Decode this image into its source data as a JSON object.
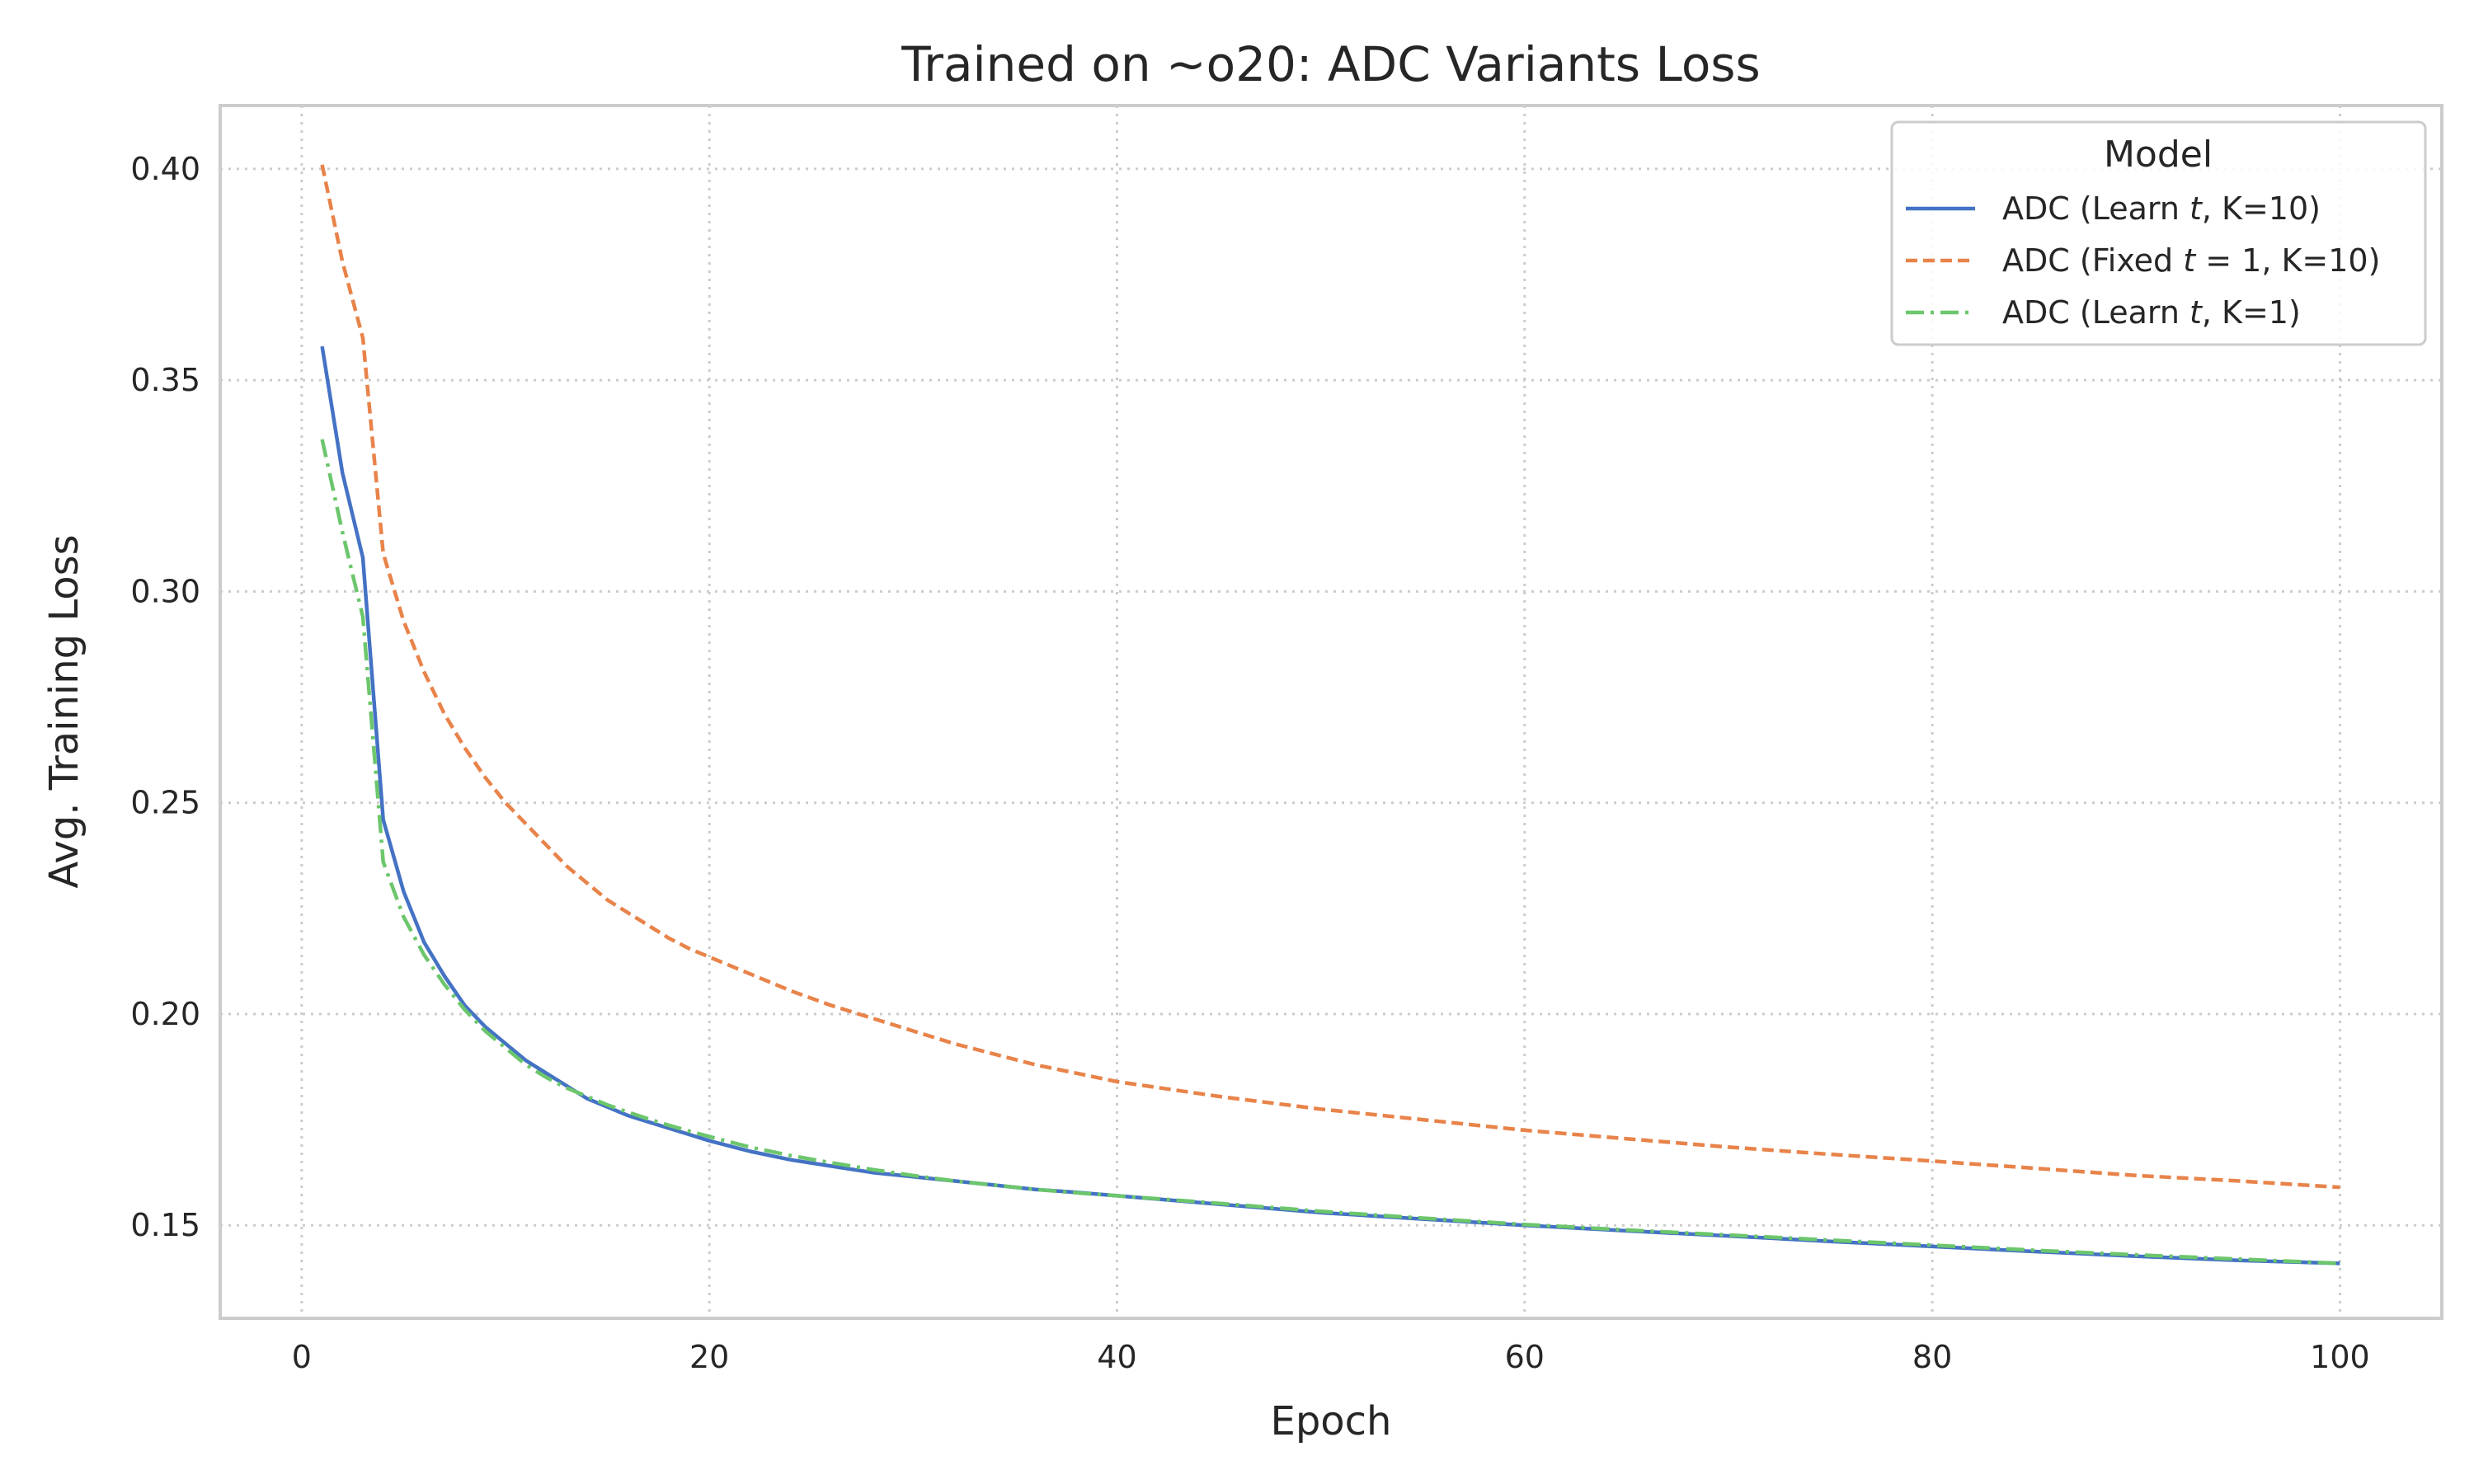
{
  "chart_data": {
    "type": "line",
    "title": "Trained on ~o20: ADC Variants Loss",
    "xlabel": "Epoch",
    "ylabel": "Avg. Training Loss",
    "xlim": [
      -4,
      105
    ],
    "ylim": [
      0.128,
      0.415
    ],
    "xticks": [
      0,
      20,
      40,
      60,
      80,
      100
    ],
    "xtick_labels": [
      "0",
      "20",
      "40",
      "60",
      "80",
      "100"
    ],
    "yticks": [
      0.15,
      0.2,
      0.25,
      0.3,
      0.35,
      0.4
    ],
    "ytick_labels": [
      "0.15",
      "0.20",
      "0.25",
      "0.30",
      "0.35",
      "0.40"
    ],
    "grid": true,
    "legend": {
      "title": "Model",
      "position": "top-right"
    },
    "series": [
      {
        "name": "ADC (Learn t, K=10)",
        "legend_parts": [
          "ADC (Learn ",
          "t",
          ", K=10)"
        ],
        "color": "#4472c4",
        "style": "solid",
        "x": [
          1,
          2,
          3,
          4,
          5,
          6,
          7,
          8,
          9,
          10,
          11,
          12,
          13,
          14,
          15,
          16,
          17,
          18,
          19,
          20,
          22,
          24,
          26,
          28,
          30,
          32,
          34,
          36,
          38,
          40,
          45,
          50,
          55,
          60,
          65,
          70,
          75,
          80,
          85,
          90,
          95,
          100
        ],
        "y": [
          0.358,
          0.328,
          0.308,
          0.246,
          0.229,
          0.217,
          0.209,
          0.202,
          0.197,
          0.193,
          0.189,
          0.186,
          0.183,
          0.18,
          0.178,
          0.176,
          0.1745,
          0.173,
          0.1715,
          0.17,
          0.1675,
          0.1655,
          0.164,
          0.1625,
          0.1615,
          0.1605,
          0.1595,
          0.1585,
          0.1578,
          0.157,
          0.155,
          0.153,
          0.1515,
          0.15,
          0.1487,
          0.1475,
          0.1462,
          0.145,
          0.1438,
          0.1427,
          0.1417,
          0.141
        ]
      },
      {
        "name": "ADC (Fixed t = 1, K=10)",
        "legend_parts": [
          "ADC (Fixed ",
          "t",
          " = 1, K=10)"
        ],
        "color": "#e8834a",
        "style": "dashed",
        "x": [
          1,
          2,
          3,
          4,
          5,
          6,
          7,
          8,
          9,
          10,
          11,
          12,
          13,
          14,
          15,
          16,
          17,
          18,
          19,
          20,
          22,
          24,
          26,
          28,
          30,
          32,
          34,
          36,
          38,
          40,
          45,
          50,
          55,
          60,
          65,
          70,
          75,
          80,
          85,
          90,
          95,
          100
        ],
        "y": [
          0.401,
          0.378,
          0.36,
          0.309,
          0.293,
          0.281,
          0.271,
          0.263,
          0.256,
          0.25,
          0.245,
          0.24,
          0.235,
          0.231,
          0.227,
          0.224,
          0.221,
          0.218,
          0.2155,
          0.2135,
          0.2095,
          0.2055,
          0.202,
          0.199,
          0.196,
          0.193,
          0.1905,
          0.188,
          0.186,
          0.184,
          0.1805,
          0.1775,
          0.175,
          0.1725,
          0.1705,
          0.1685,
          0.1668,
          0.1652,
          0.1635,
          0.1618,
          0.1605,
          0.159
        ]
      },
      {
        "name": "ADC (Learn t, K=1)",
        "legend_parts": [
          "ADC (Learn ",
          "t",
          ", K=1)"
        ],
        "color": "#6cc66c",
        "style": "dashdot",
        "x": [
          1,
          2,
          3,
          4,
          5,
          6,
          7,
          8,
          9,
          10,
          11,
          12,
          13,
          14,
          15,
          16,
          17,
          18,
          19,
          20,
          22,
          24,
          26,
          28,
          30,
          32,
          34,
          36,
          38,
          40,
          45,
          50,
          55,
          60,
          65,
          70,
          75,
          80,
          85,
          90,
          95,
          100
        ],
        "y": [
          0.336,
          0.314,
          0.294,
          0.236,
          0.223,
          0.214,
          0.207,
          0.201,
          0.196,
          0.192,
          0.188,
          0.185,
          0.1825,
          0.1805,
          0.1785,
          0.1768,
          0.1752,
          0.1737,
          0.1723,
          0.171,
          0.1685,
          0.1665,
          0.1648,
          0.1632,
          0.1618,
          0.1605,
          0.1595,
          0.1585,
          0.1577,
          0.157,
          0.1552,
          0.1533,
          0.1517,
          0.1502,
          0.1489,
          0.1477,
          0.1465,
          0.1453,
          0.1441,
          0.143,
          0.142,
          0.141
        ]
      }
    ]
  }
}
